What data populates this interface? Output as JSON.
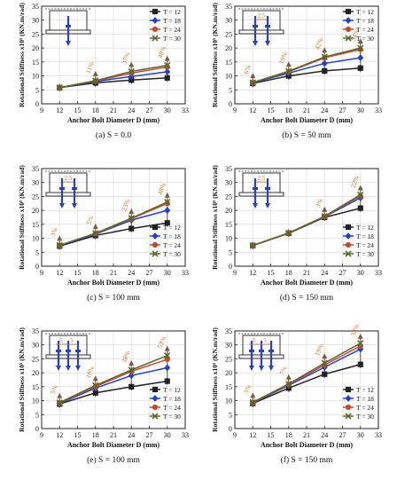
{
  "figure": {
    "colors": {
      "T12": "#222222",
      "T18": "#1f3fd6",
      "T24": "#c8492a",
      "T30": "#5a6a2a",
      "annot": "#c07a2a",
      "arrow": "#7a5a44",
      "bolt": "#2a3fd0"
    }
  },
  "chart_data": [
    {
      "type": "line",
      "caption": "(a) S = 0.0",
      "xlabel": "Anchor Bolt Diameter D (mm)",
      "ylabel": "Rotational Stiffness x10⁵ (KN.m/rad)",
      "xlim": [
        9,
        33
      ],
      "ylim": [
        0,
        35
      ],
      "x_ticks": [
        9,
        12,
        15,
        18,
        21,
        24,
        27,
        30,
        33
      ],
      "y_ticks": [
        0,
        5,
        10,
        15,
        20,
        25,
        30,
        35
      ],
      "x": [
        12,
        18,
        24,
        30
      ],
      "series": [
        {
          "name": "T = 12",
          "values": [
            5.8,
            7.5,
            8.5,
            9.3
          ]
        },
        {
          "name": "T = 18",
          "values": [
            5.8,
            8.0,
            9.8,
            11.5
          ]
        },
        {
          "name": "T = 24",
          "values": [
            5.8,
            8.2,
            11.0,
            13.2
          ]
        },
        {
          "name": "T = 30",
          "values": [
            5.8,
            8.3,
            11.6,
            13.8
          ]
        }
      ],
      "annotations": [
        {
          "text": "11%",
          "x": 18
        },
        {
          "text": "37%",
          "x": 24
        },
        {
          "text": "48%",
          "x": 30
        }
      ],
      "inset_labels": [],
      "legend_position": "top-right"
    },
    {
      "type": "line",
      "caption": "(b) S = 50 mm",
      "xlabel": "Anchor Bolt Diameter D (mm)",
      "ylabel": "Rotational Stiffness x10⁵ (KN.m/rad)",
      "xlim": [
        9,
        33
      ],
      "ylim": [
        0,
        35
      ],
      "x_ticks": [
        9,
        12,
        15,
        18,
        21,
        24,
        27,
        30,
        33
      ],
      "y_ticks": [
        0,
        5,
        10,
        15,
        20,
        25,
        30,
        35
      ],
      "x": [
        12,
        18,
        24,
        30
      ],
      "series": [
        {
          "name": "T = 12",
          "values": [
            7.3,
            10.0,
            11.8,
            12.8
          ]
        },
        {
          "name": "T = 18",
          "values": [
            7.5,
            11.0,
            14.5,
            16.5
          ]
        },
        {
          "name": "T = 24",
          "values": [
            7.6,
            11.5,
            16.5,
            19.5
          ]
        },
        {
          "name": "T = 30",
          "values": [
            7.6,
            11.7,
            16.8,
            20.0
          ]
        }
      ],
      "annotations": [
        {
          "text": "6%",
          "x": 12
        },
        {
          "text": "19%",
          "x": 18
        },
        {
          "text": "42%",
          "x": 24
        },
        {
          "text": "54%",
          "x": 30
        }
      ],
      "inset_labels": [
        "2.5"
      ],
      "legend_position": "top-right"
    },
    {
      "type": "line",
      "caption": "(c) S = 100 mm",
      "xlabel": "Anchor Bolt Diameter D (mm)",
      "ylabel": "Rotational Stiffness x10⁵ (KN.m/rad)",
      "xlim": [
        9,
        33
      ],
      "ylim": [
        0,
        35
      ],
      "x_ticks": [
        9,
        12,
        15,
        18,
        21,
        24,
        27,
        30,
        33
      ],
      "y_ticks": [
        0,
        5,
        10,
        15,
        20,
        25,
        30,
        35
      ],
      "x": [
        12,
        18,
        24,
        30
      ],
      "series": [
        {
          "name": "T = 12",
          "values": [
            7.2,
            11.0,
            13.5,
            15.5
          ]
        },
        {
          "name": "T = 18",
          "values": [
            7.4,
            11.5,
            16.5,
            20.0
          ]
        },
        {
          "name": "T = 24",
          "values": [
            7.5,
            11.7,
            17.0,
            22.5
          ]
        },
        {
          "name": "T = 30",
          "values": [
            7.5,
            11.8,
            17.2,
            23.0
          ]
        }
      ],
      "annotations": [
        {
          "text": "3%",
          "x": 12
        },
        {
          "text": "5%",
          "x": 18
        },
        {
          "text": "23%",
          "x": 24
        },
        {
          "text": "48%",
          "x": 30
        }
      ],
      "inset_labels": [
        "2.5"
      ],
      "legend_position": "bottom-right"
    },
    {
      "type": "line",
      "caption": "(d) S = 150 mm",
      "xlabel": "Anchor Bolt Diameter D (mm)",
      "ylabel": "Rotational Stiffness x10⁵ (KN.m/rad)",
      "xlim": [
        9,
        33
      ],
      "ylim": [
        0,
        35
      ],
      "x_ticks": [
        9,
        12,
        15,
        18,
        21,
        24,
        27,
        30,
        33
      ],
      "y_ticks": [
        0,
        5,
        10,
        15,
        20,
        25,
        30,
        35
      ],
      "x": [
        12,
        18,
        24,
        30
      ],
      "series": [
        {
          "name": "T = 12",
          "values": [
            7.4,
            11.8,
            17.5,
            20.8
          ]
        },
        {
          "name": "T = 18",
          "values": [
            7.4,
            11.9,
            17.7,
            24.5
          ]
        },
        {
          "name": "T = 24",
          "values": [
            7.4,
            11.9,
            17.8,
            25.2
          ]
        },
        {
          "name": "T = 30",
          "values": [
            7.4,
            11.9,
            17.9,
            25.6
          ]
        }
      ],
      "annotations": [
        {
          "text": "3%",
          "x": 24
        },
        {
          "text": "22%",
          "x": 30
        }
      ],
      "inset_labels": [
        "2.5"
      ],
      "legend_position": "bottom-right"
    },
    {
      "type": "line",
      "caption": "(e) S = 100 mm",
      "xlabel": "Anchor Bolt Diameter D (mm)",
      "ylabel": "Rotational Stiffness x10⁵ (KN.m/rad)",
      "xlim": [
        9,
        33
      ],
      "ylim": [
        0,
        35
      ],
      "x_ticks": [
        9,
        12,
        15,
        18,
        21,
        24,
        27,
        30,
        33
      ],
      "y_ticks": [
        0,
        5,
        10,
        15,
        20,
        25,
        30,
        35
      ],
      "x": [
        12,
        18,
        24,
        30
      ],
      "series": [
        {
          "name": "T = 12",
          "values": [
            8.8,
            12.8,
            15.0,
            17.0
          ]
        },
        {
          "name": "T = 18",
          "values": [
            9.0,
            14.5,
            19.0,
            21.8
          ]
        },
        {
          "name": "T = 24",
          "values": [
            9.2,
            15.0,
            20.5,
            24.8
          ]
        },
        {
          "name": "T = 30",
          "values": [
            9.3,
            15.5,
            21.0,
            26.2
          ]
        }
      ],
      "annotations": [
        {
          "text": "5%",
          "x": 12
        },
        {
          "text": "18%",
          "x": 18
        },
        {
          "text": "38%",
          "x": 24
        },
        {
          "text": "53%",
          "x": 30
        }
      ],
      "inset_labels": [
        "5",
        "5"
      ],
      "legend_position": "bottom-right"
    },
    {
      "type": "line",
      "caption": "(f) S = 150 mm",
      "xlabel": "Anchor Bolt Diameter D (mm)",
      "ylabel": "Rotational Stiffness x10⁵ (KN.m/rad)",
      "xlim": [
        9,
        33
      ],
      "ylim": [
        0,
        35
      ],
      "x_ticks": [
        9,
        12,
        15,
        18,
        21,
        24,
        27,
        30,
        33
      ],
      "y_ticks": [
        0,
        5,
        10,
        15,
        20,
        25,
        30,
        35
      ],
      "x": [
        12,
        18,
        24,
        30
      ],
      "series": [
        {
          "name": "T = 12",
          "values": [
            9.0,
            14.5,
            19.5,
            23.0
          ]
        },
        {
          "name": "T = 18",
          "values": [
            9.2,
            15.5,
            22.0,
            28.5
          ]
        },
        {
          "name": "T = 24",
          "values": [
            9.3,
            15.8,
            22.8,
            29.6
          ]
        },
        {
          "name": "T = 30",
          "values": [
            9.4,
            16.0,
            23.5,
            30.6
          ]
        }
      ],
      "annotations": [
        {
          "text": "3%",
          "x": 12
        },
        {
          "text": "7%",
          "x": 18
        },
        {
          "text": "19%",
          "x": 24
        },
        {
          "text": "33%",
          "x": 30
        }
      ],
      "inset_labels": [
        "5",
        "5"
      ],
      "legend_position": "bottom-right"
    }
  ]
}
